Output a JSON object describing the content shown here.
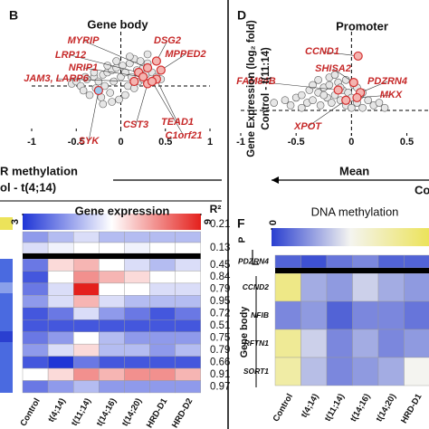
{
  "chart_data": [
    {
      "type": "scatter",
      "panel": "B",
      "title": "Gene body",
      "xlim": [
        -1,
        1
      ],
      "xticks": [
        -1,
        -0.5,
        0,
        0.5,
        1
      ],
      "ylim": [
        -1,
        1.2
      ],
      "xlabel": [
        "R methylation",
        "ol - t(4;14)"
      ],
      "color": "#e6e6e6",
      "x": [
        -0.55,
        -0.5,
        -0.45,
        -0.42,
        -0.38,
        -0.35,
        -0.3,
        -0.28,
        -0.25,
        -0.22,
        -0.2,
        -0.18,
        -0.15,
        -0.12,
        -0.1,
        -0.08,
        -0.05,
        -0.02,
        0,
        0.02,
        0.05,
        0.08,
        0.1,
        0.12,
        0.15,
        0.18,
        0.2,
        0.22,
        0.25,
        0.28,
        0.3,
        0.35,
        0.4,
        0.45,
        -0.3,
        -0.2,
        -0.1,
        0.05,
        0.15,
        0.25,
        -0.4,
        -0.15,
        0.1,
        0.3,
        -0.05
      ],
      "y": [
        0.05,
        0.1,
        0,
        -0.1,
        0.15,
        -0.2,
        0.2,
        -0.05,
        0.1,
        -0.25,
        0.25,
        0,
        0.3,
        -0.15,
        0.35,
        0.1,
        0.4,
        -0.3,
        0.2,
        0.45,
        0.3,
        0,
        0.5,
        0.2,
        0.6,
        0.35,
        0.1,
        0.55,
        0.4,
        0.25,
        0.7,
        0.3,
        0.2,
        0.15,
        0.3,
        -0.4,
        -0.35,
        -0.2,
        -0.05,
        0.15,
        0.2,
        0.45,
        0.65,
        0.5,
        0.55
      ],
      "highlight": {
        "labels": [
          "MYRIP",
          "DSG2",
          "LRP12",
          "MPPED2",
          "NRIP1",
          "JAM3, LARP6",
          "CST3",
          "TEAD1",
          "C1orf21",
          "SYK"
        ],
        "x": [
          0.3,
          0.4,
          0.2,
          0.45,
          0.25,
          0.15,
          0.3,
          0.4,
          0.35,
          -0.25
        ],
        "y": [
          0.4,
          0.55,
          0.3,
          0.35,
          0.2,
          0.1,
          0.05,
          0.15,
          0.1,
          -0.1
        ],
        "colors": [
          "#f4b4b0",
          "#f4b4b0",
          "#f4b4b0",
          "#f4b4b0",
          "#f4b4b0",
          "#f4b4b0",
          "#f4b4b0",
          "#f4b4b0",
          "#f4b4b0",
          "#9cc9ec"
        ]
      }
    },
    {
      "type": "scatter",
      "panel": "D",
      "title": "Promoter",
      "xlim": [
        -1,
        0.7
      ],
      "xticks": [
        -1,
        -0.5,
        0,
        0.5
      ],
      "ylim": [
        -0.5,
        1.55
      ],
      "xlabel": [
        "Mean",
        "Contr"
      ],
      "ylabel": [
        "Gene Expression (log₂ fold)",
        "Control - t(11:14)"
      ],
      "color": "#e6e6e6",
      "x": [
        -0.7,
        -0.6,
        -0.55,
        -0.5,
        -0.45,
        -0.4,
        -0.38,
        -0.35,
        -0.3,
        -0.28,
        -0.25,
        -0.22,
        -0.2,
        -0.18,
        -0.15,
        -0.12,
        -0.1,
        -0.08,
        -0.05,
        -0.03,
        0,
        0.02,
        0.05,
        0.08,
        0.1,
        0.15,
        0.2,
        0.25,
        0.3,
        -0.3,
        -0.2,
        -0.1,
        0,
        0.1,
        -0.15,
        -0.25,
        -0.05,
        0.05,
        -0.35,
        -0.45
      ],
      "y": [
        0.15,
        0.2,
        0.1,
        0.25,
        0.3,
        0.15,
        0.4,
        0.2,
        0.35,
        0.1,
        0.45,
        0.25,
        0.5,
        0.15,
        0.3,
        0.55,
        0.2,
        0.4,
        0.1,
        0.35,
        0.25,
        0.5,
        0.15,
        0.3,
        0.05,
        0.2,
        0.1,
        0.15,
        0.05,
        0.6,
        0.65,
        0.45,
        0.05,
        0.35,
        0.7,
        0.3,
        0.6,
        0.45,
        0.5,
        0.05
      ],
      "highlight": {
        "labels": [
          "CCND1",
          "SHISA2",
          "FAM84B",
          "PDZRN4",
          "MKX",
          "XPOT"
        ],
        "x": [
          0.06,
          0.02,
          -0.12,
          0.08,
          0.05,
          -0.05
        ],
        "y": [
          1.07,
          0.55,
          0.4,
          0.35,
          0.25,
          0.2
        ],
        "colors": [
          "#f4b4b0",
          "#f4b4b0",
          "#f4b4b0",
          "#f4b4b0",
          "#f4b4b0",
          "#f4b4b0"
        ]
      }
    },
    {
      "type": "heatmap",
      "title": "Gene expression",
      "zlim": [
        3,
        9
      ],
      "colorbar_ticks": [
        3,
        9
      ],
      "colors": [
        "#1f35d6",
        "#ffffff",
        "#e4201c"
      ],
      "columns": [
        "Control",
        "t(4;14)",
        "t(11;14)",
        "t(14;16)",
        "t(14;20)",
        "HRD-D1",
        "HRD-D2"
      ],
      "r2_title": "R²",
      "r2": [
        0.21,
        0.13,
        0.45,
        0.84,
        0.79,
        0.95,
        0.72,
        0.51,
        0.75,
        0.79,
        0.66,
        0.91,
        0.97
      ],
      "values": [
        [
          4.5,
          5,
          5.5,
          5,
          5,
          5,
          5
        ],
        [
          5.5,
          5.8,
          6,
          6,
          5.8,
          6,
          6
        ],
        [
          4,
          6.5,
          7,
          6,
          5.5,
          5,
          5.5
        ],
        [
          3.5,
          6,
          7.5,
          7,
          6.5,
          6,
          6
        ],
        [
          4,
          5.5,
          9,
          6,
          6,
          5.5,
          5.5
        ],
        [
          4.5,
          5.5,
          7,
          5.5,
          5,
          5,
          5
        ],
        [
          3.5,
          4,
          5.5,
          4.5,
          4,
          3.5,
          4
        ],
        [
          3.5,
          3.5,
          3.5,
          3.5,
          3.5,
          3.5,
          3.5
        ],
        [
          4,
          4.5,
          6,
          5,
          4.5,
          4.5,
          4.5
        ],
        [
          4.5,
          5.5,
          6.5,
          5,
          5,
          4.5,
          5
        ],
        [
          3.5,
          3,
          4,
          3.5,
          3.5,
          3.5,
          3.5
        ],
        [
          6,
          6.5,
          7.5,
          7,
          7.5,
          7.5,
          7
        ],
        [
          4,
          4.5,
          5,
          4.5,
          4.5,
          4.5,
          4.5
        ]
      ]
    },
    {
      "type": "heatmap",
      "panel": "F",
      "title": "DNA methylation",
      "zlim": [
        0,
        1
      ],
      "colorbar_ticks": [
        0
      ],
      "colors": [
        "#2a3fd0",
        "#f4f4f0",
        "#ece35a"
      ],
      "columns": [
        "Control",
        "t(4;14)",
        "t(11;14)",
        "t(14;16)",
        "t(14;20)",
        "HRD-D1"
      ],
      "rows": [
        "PDZRN4",
        "CCND2",
        "NFIB",
        "RFTN1",
        "SORT1"
      ],
      "groups": [
        "P",
        "Gene body"
      ],
      "values": [
        [
          0.1,
          0.05,
          0.15,
          0.2,
          0.1,
          0.1
        ],
        [
          0.85,
          0.3,
          0.25,
          0.4,
          0.3,
          0.25
        ],
        [
          0.2,
          0.25,
          0.1,
          0.2,
          0.2,
          0.15
        ],
        [
          0.8,
          0.4,
          0.2,
          0.3,
          0.2,
          0.25
        ],
        [
          0.75,
          0.35,
          0.2,
          0.25,
          0.3,
          0.5
        ]
      ]
    }
  ]
}
